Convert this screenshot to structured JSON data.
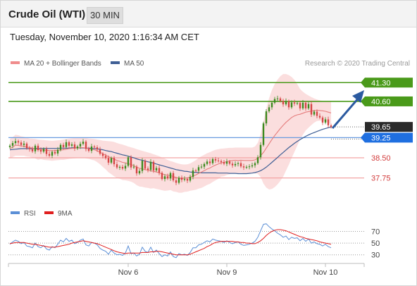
{
  "header": {
    "title": "Crude Oil (WTI)",
    "timeframe": "30 MIN"
  },
  "datetime": "Tuesday, November 10, 2020 1:16:34 AM CET",
  "legend": {
    "ma20": "MA 20 + Bollinger Bands",
    "ma50": "MA 50"
  },
  "credit": "Research © 2020 Trading Central",
  "rsi_legend": {
    "rsi": "RSI",
    "ma9": "9MA"
  },
  "colors": {
    "green": "#4a9a1a",
    "blue_line": "#5b8fd6",
    "red_line": "#e28b8b",
    "ma50": "#3f5f95",
    "band": "#f7c3c3",
    "arrow": "#2b5aa0",
    "up": "#3c8a1e",
    "down": "#d64545"
  },
  "chart_data": {
    "type": "candlestick",
    "x_labels": [
      "Nov 6",
      "Nov 9",
      "Nov 10"
    ],
    "price_levels": [
      {
        "label": "41.30",
        "value": 41.3,
        "kind": "resistance"
      },
      {
        "label": "40.60",
        "value": 40.6,
        "kind": "resistance"
      },
      {
        "label": "39.65",
        "value": 39.65,
        "kind": "last"
      },
      {
        "label": "39.25",
        "value": 39.25,
        "kind": "pivot"
      },
      {
        "label": "38.50",
        "value": 38.5,
        "kind": "support"
      },
      {
        "label": "37.75",
        "value": 37.75,
        "kind": "support"
      }
    ],
    "price_ylim": [
      36.9,
      41.7
    ],
    "close": [
      38.95,
      39.05,
      39.12,
      39.07,
      38.98,
      39.03,
      38.86,
      38.82,
      38.74,
      38.95,
      38.79,
      38.73,
      38.83,
      38.64,
      38.58,
      38.72,
      38.66,
      38.8,
      38.98,
      38.9,
      39.08,
      38.95,
      39.0,
      38.85,
      38.92,
      39.02,
      39.1,
      38.83,
      38.76,
      38.92,
      38.89,
      38.81,
      38.65,
      38.57,
      38.49,
      38.32,
      38.49,
      38.26,
      38.14,
      38.16,
      38.1,
      38.2,
      38.52,
      38.14,
      38.17,
      37.92,
      38.01,
      38.39,
      38.1,
      38.05,
      38.35,
      38.03,
      38.12,
      37.94,
      37.71,
      37.81,
      37.73,
      37.93,
      37.66,
      37.57,
      37.76,
      37.68,
      37.71,
      37.65,
      37.79,
      38.03,
      38.02,
      38.15,
      38.17,
      38.27,
      38.36,
      38.3,
      38.45,
      38.4,
      38.38,
      38.34,
      38.28,
      38.36,
      38.28,
      38.22,
      38.27,
      38.3,
      38.18,
      38.14,
      38.16,
      38.18,
      38.22,
      38.3,
      38.52,
      38.98,
      39.78,
      40.23,
      40.38,
      40.55,
      40.69,
      40.71,
      40.62,
      40.49,
      40.61,
      40.38,
      40.56,
      40.52,
      40.54,
      40.34,
      40.55,
      40.34,
      40.5,
      40.11,
      40.22,
      40.06,
      40.0,
      39.81,
      39.93,
      39.71,
      39.65
    ],
    "ma20": [
      38.84,
      38.9,
      38.97,
      38.96,
      38.94,
      38.93,
      38.9,
      38.88,
      38.86,
      38.84,
      38.8,
      38.81,
      38.79,
      38.78,
      38.77,
      38.76,
      38.77,
      38.78,
      38.79,
      38.8,
      38.82,
      38.84,
      38.85,
      38.86,
      38.87,
      38.88,
      38.88,
      38.86,
      38.84,
      38.82,
      38.8,
      38.76,
      38.71,
      38.65,
      38.6,
      38.54,
      38.5,
      38.45,
      38.4,
      38.37,
      38.33,
      38.31,
      38.28,
      38.25,
      38.21,
      38.15,
      38.11,
      38.09,
      38.06,
      38.04,
      38.01,
      38.0,
      37.97,
      37.94,
      37.9,
      37.87,
      37.85,
      37.84,
      37.8,
      37.77,
      37.74,
      37.73,
      37.74,
      37.75,
      37.78,
      37.82,
      37.86,
      37.92,
      37.97,
      38.02,
      38.08,
      38.12,
      38.18,
      38.23,
      38.27,
      38.32,
      38.33,
      38.36,
      38.38,
      38.4,
      38.41,
      38.4,
      38.41,
      38.4,
      38.4,
      38.4,
      38.4,
      38.42,
      38.48,
      38.58,
      38.7,
      38.86,
      39.02,
      39.18,
      39.33,
      39.46,
      39.59,
      39.71,
      39.82,
      39.91,
      40.0,
      40.06,
      40.1,
      40.12,
      40.16,
      40.2,
      40.22,
      40.24,
      40.26,
      40.27,
      40.26,
      40.25,
      40.23,
      40.2,
      40.17
    ],
    "ma50": [
      38.8,
      38.81,
      38.82,
      38.83,
      38.84,
      38.84,
      38.84,
      38.84,
      38.84,
      38.85,
      38.85,
      38.85,
      38.85,
      38.85,
      38.85,
      38.85,
      38.85,
      38.85,
      38.86,
      38.86,
      38.86,
      38.86,
      38.87,
      38.87,
      38.87,
      38.87,
      38.87,
      38.86,
      38.86,
      38.85,
      38.84,
      38.83,
      38.82,
      38.8,
      38.77,
      38.75,
      38.73,
      38.7,
      38.67,
      38.64,
      38.61,
      38.59,
      38.56,
      38.53,
      38.5,
      38.46,
      38.43,
      38.41,
      38.38,
      38.35,
      38.33,
      38.3,
      38.27,
      38.24,
      38.21,
      38.18,
      38.15,
      38.12,
      38.09,
      38.06,
      38.04,
      38.02,
      38.0,
      37.99,
      37.97,
      37.96,
      37.96,
      37.95,
      37.94,
      37.94,
      37.94,
      37.94,
      37.94,
      37.94,
      37.93,
      37.93,
      37.93,
      37.93,
      37.92,
      37.92,
      37.92,
      37.91,
      37.91,
      37.91,
      37.91,
      37.92,
      37.93,
      37.95,
      37.98,
      38.02,
      38.08,
      38.15,
      38.24,
      38.33,
      38.42,
      38.51,
      38.61,
      38.7,
      38.79,
      38.88,
      38.96,
      39.04,
      39.11,
      39.18,
      39.24,
      39.3,
      39.35,
      39.4,
      39.44,
      39.48,
      39.52,
      39.56,
      39.59,
      39.62,
      39.65
    ],
    "bb_upper": [
      39.2,
      39.27,
      39.36,
      39.34,
      39.3,
      39.28,
      39.25,
      39.22,
      39.21,
      39.2,
      39.18,
      39.17,
      39.16,
      39.15,
      39.14,
      39.13,
      39.14,
      39.15,
      39.16,
      39.18,
      39.2,
      39.22,
      39.23,
      39.24,
      39.25,
      39.26,
      39.26,
      39.24,
      39.22,
      39.21,
      39.2,
      39.18,
      39.16,
      39.14,
      39.13,
      39.12,
      39.11,
      39.09,
      39.05,
      39.02,
      38.99,
      38.96,
      38.92,
      38.89,
      38.86,
      38.82,
      38.79,
      38.76,
      38.73,
      38.7,
      38.67,
      38.63,
      38.6,
      38.56,
      38.51,
      38.47,
      38.42,
      38.38,
      38.35,
      38.31,
      38.28,
      38.26,
      38.25,
      38.26,
      38.29,
      38.35,
      38.41,
      38.49,
      38.56,
      38.61,
      38.67,
      38.71,
      38.76,
      38.8,
      38.82,
      38.84,
      38.85,
      38.86,
      38.87,
      38.87,
      38.88,
      38.88,
      38.88,
      38.88,
      38.88,
      38.88,
      38.88,
      38.92,
      39.06,
      39.38,
      39.86,
      40.33,
      40.72,
      41.02,
      41.25,
      41.41,
      41.54,
      41.62,
      41.62,
      41.58,
      41.51,
      41.4,
      41.25,
      41.06,
      40.96,
      40.88,
      40.82,
      40.76,
      40.71,
      40.67,
      40.64,
      40.62,
      40.61,
      40.6,
      40.59
    ],
    "bb_lower": [
      38.48,
      38.53,
      38.58,
      38.58,
      38.58,
      38.58,
      38.55,
      38.54,
      38.51,
      38.48,
      38.42,
      38.45,
      38.42,
      38.41,
      38.4,
      38.39,
      38.4,
      38.41,
      38.42,
      38.42,
      38.44,
      38.46,
      38.47,
      38.48,
      38.49,
      38.5,
      38.5,
      38.48,
      38.46,
      38.43,
      38.4,
      38.34,
      38.26,
      38.16,
      38.07,
      37.96,
      37.89,
      37.81,
      37.75,
      37.72,
      37.67,
      37.66,
      37.64,
      37.61,
      37.56,
      37.48,
      37.43,
      37.42,
      37.39,
      37.38,
      37.35,
      37.37,
      37.34,
      37.32,
      37.29,
      37.27,
      37.28,
      37.3,
      37.25,
      37.23,
      37.2,
      37.2,
      37.23,
      37.24,
      37.27,
      37.29,
      37.31,
      37.35,
      37.38,
      37.43,
      37.49,
      37.53,
      37.6,
      37.66,
      37.72,
      37.8,
      37.81,
      37.86,
      37.89,
      37.93,
      37.94,
      37.92,
      37.94,
      37.92,
      37.92,
      37.92,
      37.92,
      37.92,
      37.9,
      37.78,
      37.54,
      37.39,
      37.32,
      37.34,
      37.41,
      37.51,
      37.64,
      37.8,
      38.02,
      38.24,
      38.49,
      38.72,
      38.95,
      39.18,
      39.36,
      39.52,
      39.62,
      39.72,
      39.81,
      39.87,
      39.88,
      39.88,
      39.85,
      39.8,
      39.75
    ],
    "rsi_ylim": [
      20,
      85
    ],
    "rsi_levels": [
      70,
      50,
      30
    ],
    "rsi": [
      48,
      52,
      55,
      53,
      49,
      51,
      45,
      44,
      42,
      50,
      44,
      42,
      46,
      40,
      38,
      44,
      42,
      48,
      55,
      52,
      58,
      53,
      55,
      49,
      51,
      55,
      57,
      47,
      45,
      51,
      50,
      47,
      41,
      38,
      36,
      31,
      38,
      33,
      30,
      31,
      29,
      33,
      45,
      32,
      33,
      28,
      31,
      43,
      36,
      34,
      43,
      34,
      38,
      32,
      27,
      30,
      28,
      35,
      27,
      25,
      32,
      30,
      31,
      29,
      34,
      42,
      42,
      47,
      48,
      51,
      54,
      52,
      57,
      55,
      54,
      53,
      51,
      54,
      51,
      49,
      51,
      52,
      48,
      46,
      47,
      48,
      50,
      53,
      60,
      71,
      82,
      83,
      78,
      74,
      71,
      67,
      64,
      60,
      62,
      56,
      60,
      58,
      59,
      54,
      58,
      53,
      57,
      50,
      52,
      49,
      48,
      45,
      48,
      44,
      42
    ],
    "rsi_ma9": [
      49,
      50,
      51,
      51,
      51,
      51,
      50,
      49,
      48,
      48,
      47,
      46,
      45,
      44,
      43,
      43,
      43,
      44,
      45,
      46,
      47,
      48,
      50,
      51,
      52,
      53,
      54,
      53,
      52,
      51,
      50,
      49,
      47,
      45,
      43,
      41,
      39,
      37,
      35,
      34,
      33,
      32,
      33,
      33,
      33,
      33,
      33,
      34,
      34,
      34,
      35,
      35,
      36,
      36,
      35,
      34,
      33,
      32,
      31,
      30,
      30,
      30,
      30,
      30,
      31,
      33,
      35,
      37,
      39,
      41,
      44,
      46,
      49,
      51,
      52,
      53,
      53,
      53,
      53,
      53,
      52,
      52,
      51,
      51,
      50,
      50,
      49,
      49,
      51,
      54,
      58,
      63,
      67,
      70,
      72,
      73,
      73,
      72,
      71,
      69,
      67,
      65,
      63,
      61,
      60,
      58,
      57,
      56,
      55,
      54,
      52,
      51,
      50,
      49,
      48
    ]
  }
}
